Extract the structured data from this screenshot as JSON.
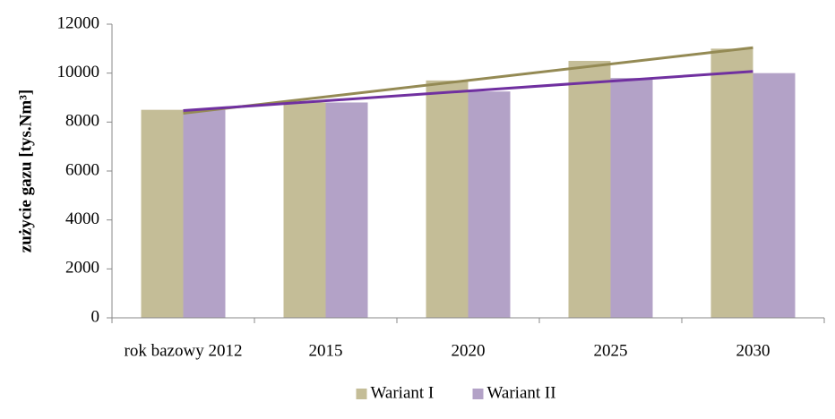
{
  "chart_data": {
    "type": "bar",
    "y_label": "zużycie gazu [tys.Nm³]",
    "categories": [
      "rok bazowy 2012",
      "2015",
      "2020",
      "2025",
      "2030"
    ],
    "series": [
      {
        "name": "Wariant I",
        "color": "#c4bd97",
        "trend_color": "#948a54",
        "values": [
          8500,
          8800,
          9700,
          10500,
          11000
        ]
      },
      {
        "name": "Wariant II",
        "color": "#b3a2c7",
        "trend_color": "#7030a0",
        "values": [
          8500,
          8800,
          9250,
          9800,
          10000
        ]
      }
    ],
    "trendline": true,
    "ylim": [
      0,
      12000
    ],
    "yticks": [
      0,
      2000,
      4000,
      6000,
      8000,
      10000,
      12000
    ],
    "legend": "bottom"
  }
}
